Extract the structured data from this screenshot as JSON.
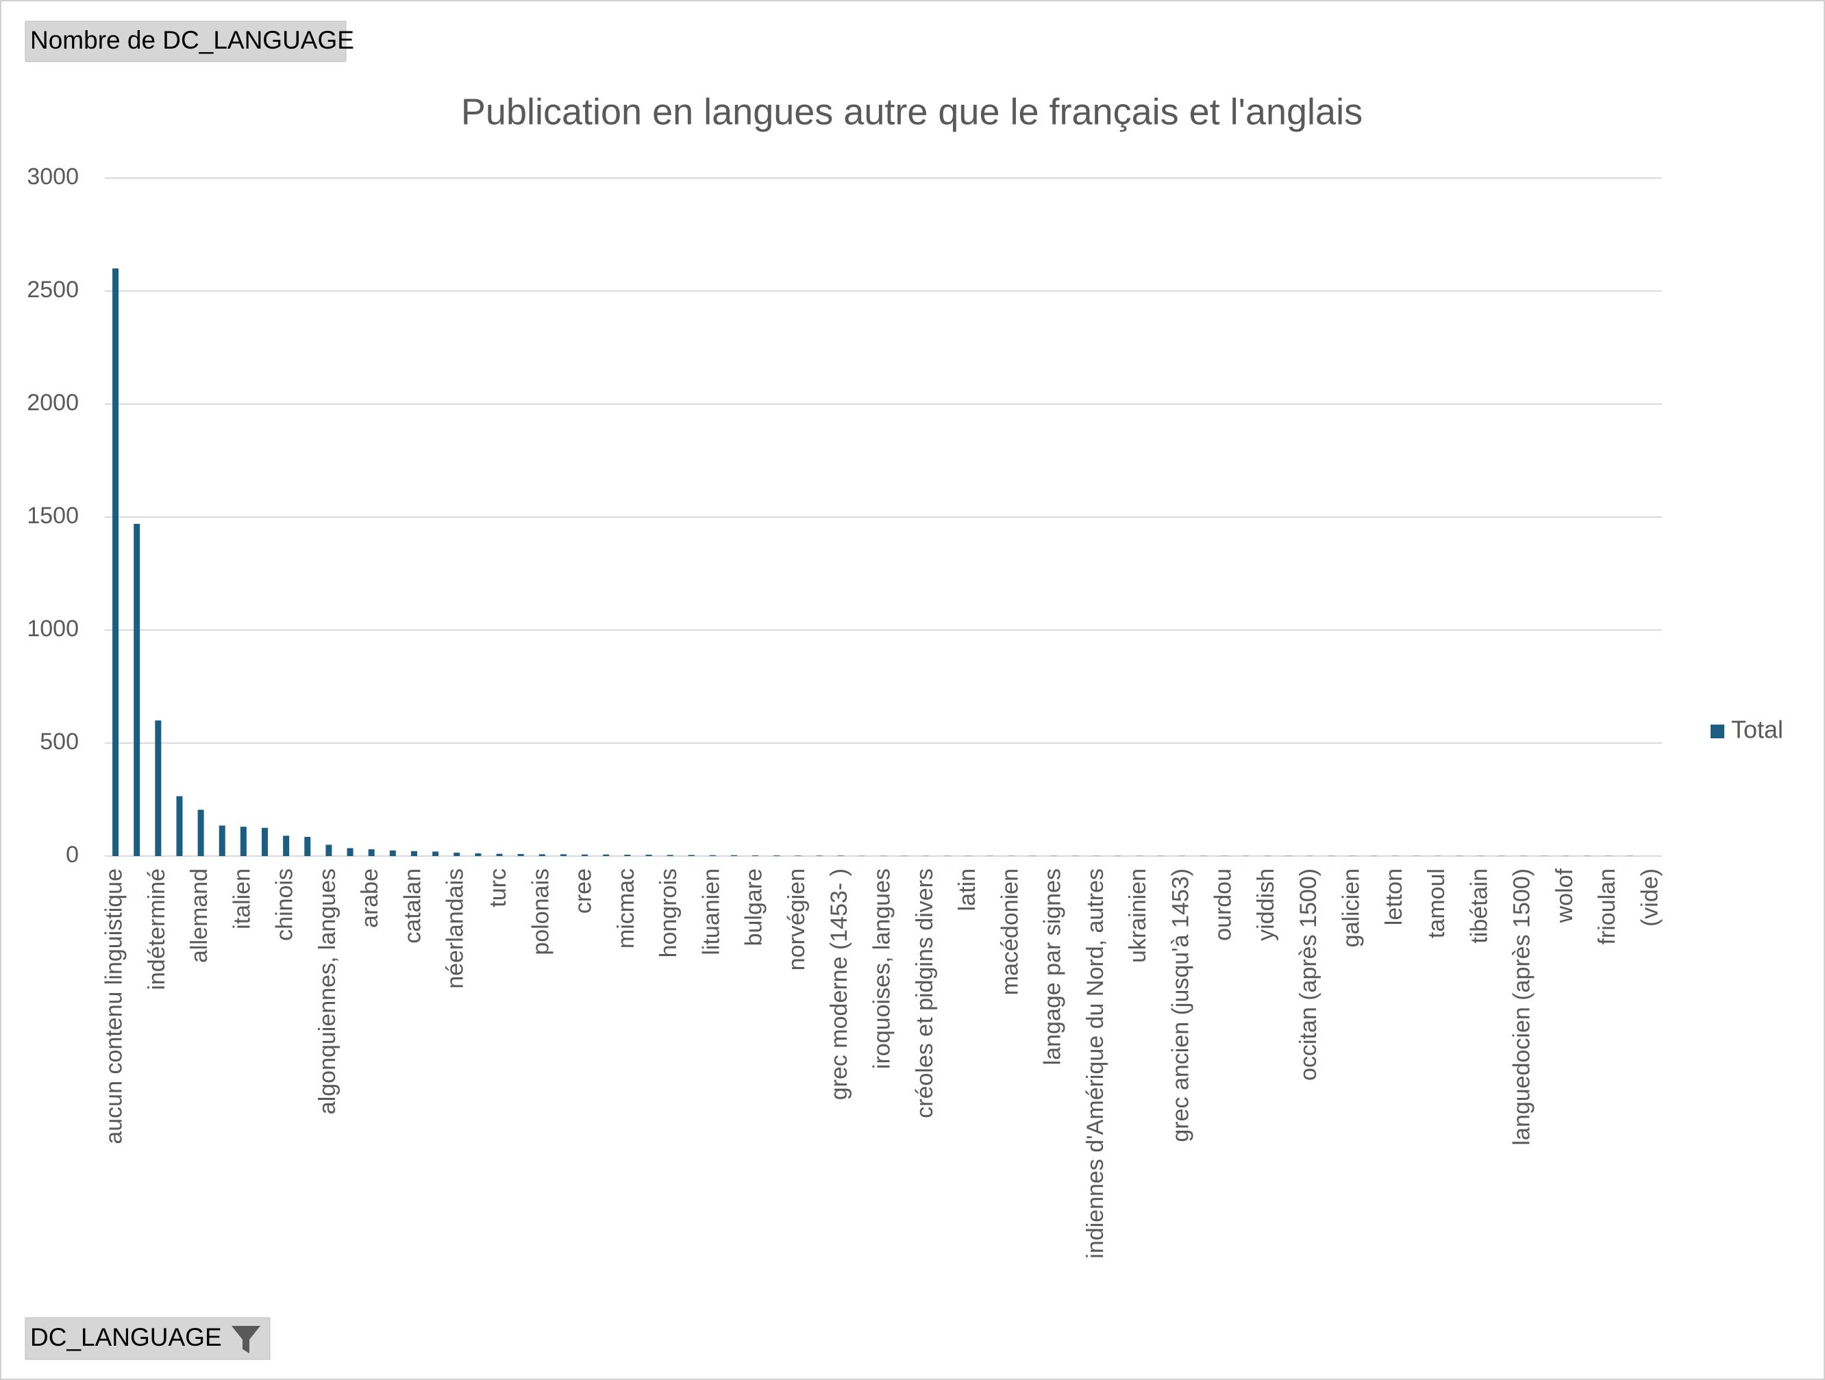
{
  "field_buttons": {
    "value_field": "Nombre de DC_LANGUAGE",
    "axis_field": "DC_LANGUAGE"
  },
  "chart_data": {
    "type": "bar",
    "title": "Publication en langues autre que le français et l'anglais",
    "categories": [
      "aucun contenu linguistique",
      null,
      "indéterminé",
      null,
      "allemand",
      null,
      "italien",
      null,
      "chinois",
      null,
      "algonquiennes, langues",
      null,
      "arabe",
      null,
      "catalan",
      null,
      "néerlandais",
      null,
      "turc",
      null,
      "polonais",
      null,
      "cree",
      null,
      "micmac",
      null,
      "hongrois",
      null,
      "lituanien",
      null,
      "bulgare",
      null,
      "norvégien",
      null,
      "grec moderne (1453- )",
      null,
      "iroquoises, langues",
      null,
      "créoles et pidgins divers",
      null,
      "latin",
      null,
      "macédonien",
      null,
      "langage par signes",
      null,
      "indiennes d'Amérique du Nord, autres",
      null,
      "ukrainien",
      null,
      "grec ancien (jusqu'à 1453)",
      null,
      "ourdou",
      null,
      "yiddish",
      null,
      "occitan (après 1500)",
      null,
      "galicien",
      null,
      "letton",
      null,
      "tamoul",
      null,
      "tibétain",
      null,
      "languedocien (après 1500)",
      null,
      "wolof",
      null,
      "frioulan",
      null,
      "(vide)"
    ],
    "series": [
      {
        "name": "Total",
        "color": "#1b5e84",
        "values": [
          2600,
          1470,
          600,
          265,
          205,
          135,
          130,
          125,
          90,
          85,
          50,
          35,
          30,
          25,
          22,
          20,
          15,
          12,
          10,
          9,
          8,
          8,
          7,
          7,
          6,
          6,
          5,
          5,
          4,
          4,
          3,
          3,
          2,
          2,
          2,
          1,
          1,
          1,
          1,
          1,
          1,
          1,
          1,
          1,
          1,
          1,
          1,
          1,
          1,
          1,
          1,
          1,
          1,
          1,
          1,
          1,
          1,
          1,
          1,
          1,
          1,
          1,
          1,
          1,
          1,
          1,
          1,
          1,
          1,
          1,
          1,
          1,
          0
        ]
      }
    ],
    "ylim": [
      0,
      3000
    ],
    "yticks": [
      0,
      500,
      1000,
      1500,
      2000,
      2500,
      3000
    ],
    "grid": true,
    "legend": "right"
  }
}
